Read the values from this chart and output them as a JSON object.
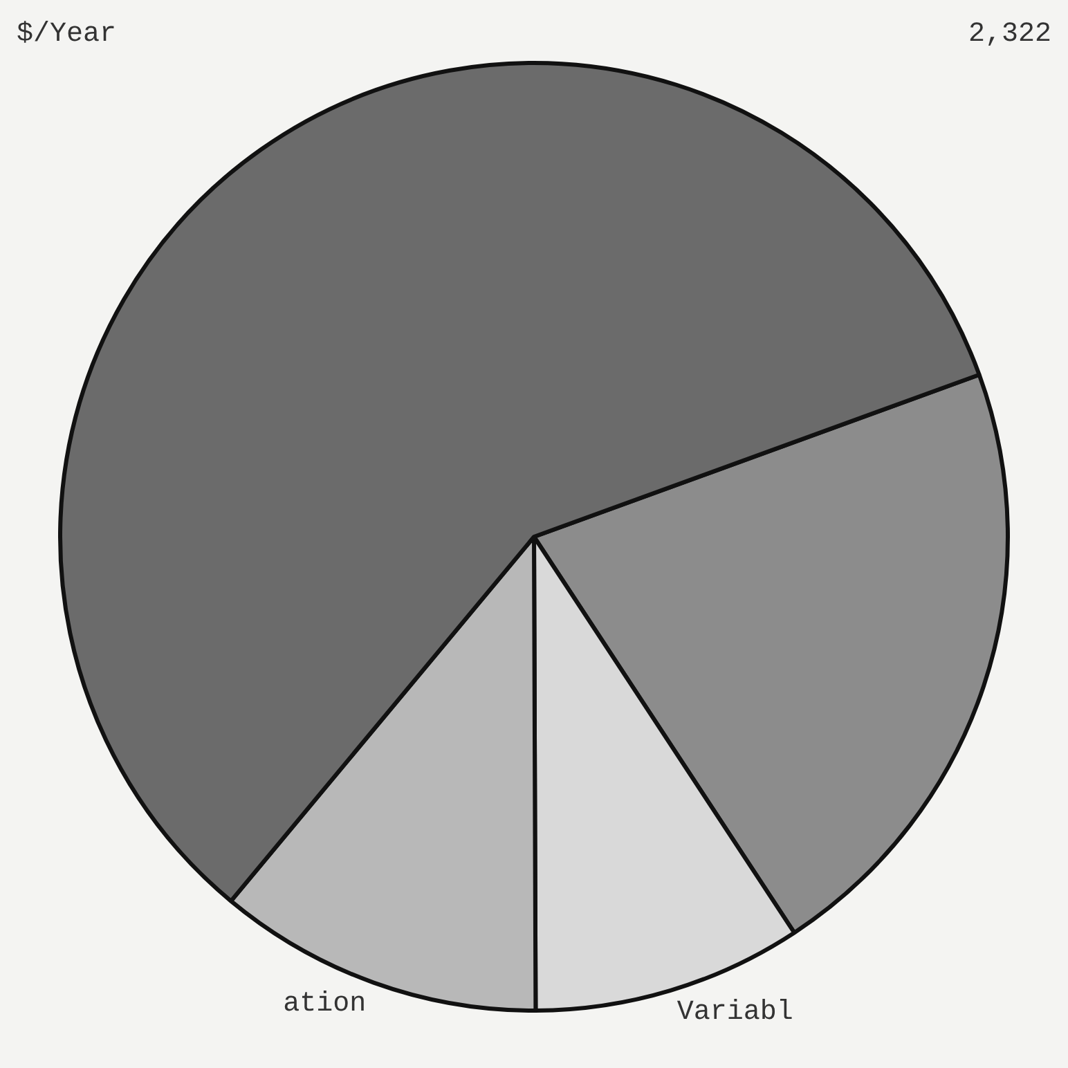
{
  "chart_data": {
    "type": "pie",
    "categories": [
      null,
      "Variabl",
      "ation",
      null
    ],
    "values": [
      21.3,
      9.2,
      11.1,
      58.4
    ],
    "colors": [
      "#8c8c8c",
      "#d9d9d9",
      "#b8b8b8",
      "#6b6b6b"
    ],
    "annotations": [
      "$/Year",
      "2,322"
    ],
    "legend": false
  }
}
